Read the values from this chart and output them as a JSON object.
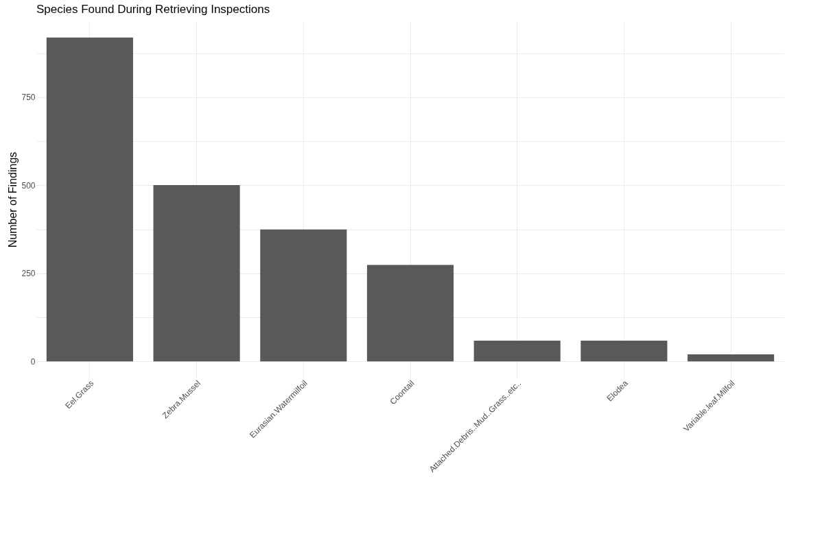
{
  "chart_data": {
    "type": "bar",
    "title": "Species Found During Retrieving Inspections",
    "ylabel": "Number of Findings",
    "categories": [
      "Eel.Grass",
      "Zebra.Mussel",
      "Eurasian.Watermilfoil",
      "Coontail",
      "Attached.Debris..Mud..Grass..etc..",
      "Elodea",
      "Variable.leaf.Milfoil"
    ],
    "values": [
      920,
      501,
      375,
      274,
      59,
      59,
      20
    ],
    "color": "#595959",
    "ylim": [
      -46,
      966
    ],
    "yticks": [
      0,
      {
        "value": 125,
        "label": null
      },
      250,
      {
        "value": 375,
        "label": null
      },
      500,
      {
        "value": 625,
        "label": null
      },
      750,
      {
        "value": 875,
        "label": null
      }
    ],
    "grid": true
  }
}
